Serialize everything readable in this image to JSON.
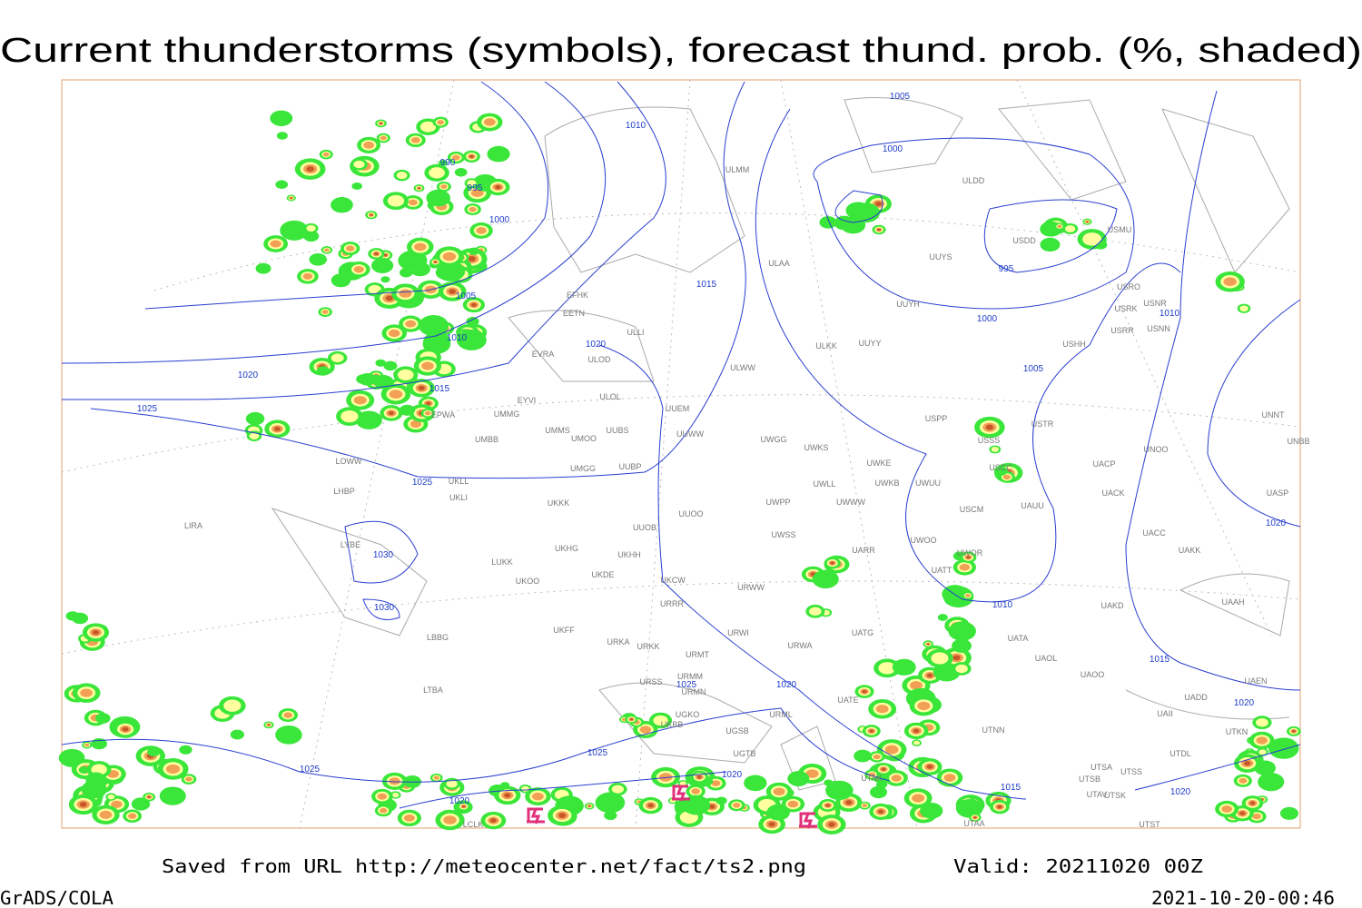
{
  "header": {
    "title": "Current thunderstorms (symbols), forecast thund. prob. (%, shaded)"
  },
  "map": {
    "isobar_labels": [
      "1005",
      "1010",
      "1000",
      "990",
      "995",
      "1000",
      "995",
      "1015",
      "1005",
      "1000",
      "1010",
      "1020",
      "1010",
      "1020",
      "1005",
      "1015",
      "1025",
      "1025",
      "1020",
      "1030",
      "1030",
      "1010",
      "1015",
      "1025",
      "1020",
      "1020",
      "1025",
      "1025",
      "1020",
      "1015",
      "1020",
      "1020"
    ],
    "stations": [
      "ULMM",
      "ULDD",
      "USDD",
      "USMU",
      "ULAA",
      "UUYS",
      "EFHK",
      "EETN",
      "ULLI",
      "UUYH",
      "USRO",
      "USRK",
      "USNR",
      "USRR",
      "USNN",
      "ULKK",
      "UUYY",
      "USHH",
      "EVRA",
      "ULOD",
      "ULWW",
      "ULOL",
      "EYVI",
      "UUEM",
      "UMMG",
      "USSS",
      "USTR",
      "USPP",
      "UNNT",
      "UMMS",
      "UUBS",
      "UUWW",
      "UWGG",
      "UWKS",
      "UNBB",
      "UMBB",
      "UMOO",
      "UNOO",
      "UWKE",
      "USCC",
      "UACP",
      "UMGG",
      "UUBP",
      "UWLL",
      "UWKB",
      "UWUU",
      "USCM",
      "UAUU",
      "UACK",
      "UASP",
      "UKKK",
      "UWPP",
      "UWWW",
      "UUOO",
      "UUOB",
      "UWSS",
      "UACC",
      "UAKK",
      "UKHG",
      "UKHH",
      "UKDE",
      "UARR",
      "UWOO",
      "UWOR",
      "LUKK",
      "UKOO",
      "UKCW",
      "URWW",
      "URRR",
      "UATT",
      "UAKD",
      "UAAH",
      "UKFF",
      "UATG",
      "URWI",
      "URKA",
      "URKK",
      "URWA",
      "UATA",
      "URMT",
      "UAOL",
      "URMM",
      "UAOO",
      "URSS",
      "URMN",
      "URML",
      "UATE",
      "UAEN",
      "UADD",
      "UGKO",
      "UAII",
      "UGSB",
      "UTNN",
      "UTKN",
      "LBBG",
      "LTBA",
      "LYBE",
      "LHBP",
      "LIRA",
      "LOWW",
      "EPWA",
      "UKLL",
      "UKLI",
      "UTAK",
      "UTSS",
      "UTSA",
      "UTSB",
      "UTAV",
      "UTSK",
      "UTST",
      "UTAA",
      "UTDL",
      "LCLK",
      "UKBB",
      "UGTB"
    ]
  },
  "footer": {
    "source": "Saved from URL http://meteocenter.net/fact/ts2.png",
    "valid": "Valid: 20211020 00Z",
    "software": "GrADS/COLA",
    "timestamp": "2021-10-20-00:46"
  }
}
